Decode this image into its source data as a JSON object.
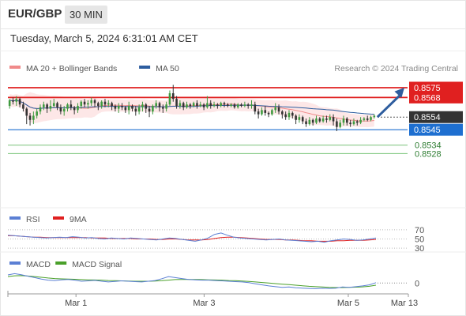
{
  "header": {
    "pair": "EUR/GBP",
    "timeframe": "30 MIN",
    "timestamp": "Tuesday, March 5, 2024 6:31:01 AM CET"
  },
  "colors": {
    "up": "#3f9a3f",
    "down": "#333333",
    "ma20": "#f08a8a",
    "band_fill": "#fde3e3",
    "ma50": "#2d5d9f",
    "resistance": "#e02020",
    "support": "#1e6fd0",
    "target": "#7ac47a",
    "current": "#333333",
    "rsi": "#5b7fd4",
    "rsi_ma": "#e02020",
    "macd": "#5b7fd4",
    "macd_signal": "#4aa02a",
    "arrow": "#2e5d9e"
  },
  "chart_data": [
    {
      "type": "candlestick",
      "legend": [
        {
          "label": "MA 20 + Bollinger Bands",
          "color": "#f08a8a"
        },
        {
          "label": "MA 50",
          "color": "#2d5d9f"
        }
      ],
      "copyright": "Research © 2024 Trading Central",
      "ylim": [
        8522,
        8584
      ],
      "levels": [
        {
          "value": 8575,
          "label": "0.8575",
          "kind": "resistance"
        },
        {
          "value": 8568,
          "label": "0.8568",
          "kind": "resistance"
        },
        {
          "value": 8554,
          "label": "0.8554",
          "kind": "current"
        },
        {
          "value": 8545,
          "label": "0.8545",
          "kind": "support"
        },
        {
          "value": 8534,
          "label": "0.8534",
          "kind": "target"
        },
        {
          "value": 8528,
          "label": "0.8528",
          "kind": "target"
        }
      ],
      "candles": [
        [
          8562,
          8566,
          8567,
          8560
        ],
        [
          8566,
          8565,
          8568,
          8563
        ],
        [
          8565,
          8567,
          8569,
          8562
        ],
        [
          8567,
          8563,
          8568,
          8561
        ],
        [
          8563,
          8560,
          8565,
          8558
        ],
        [
          8560,
          8555,
          8561,
          8549
        ],
        [
          8555,
          8552,
          8557,
          8548
        ],
        [
          8552,
          8555,
          8558,
          8549
        ],
        [
          8555,
          8558,
          8560,
          8553
        ],
        [
          8558,
          8561,
          8563,
          8556
        ],
        [
          8561,
          8563,
          8565,
          8559
        ],
        [
          8563,
          8560,
          8564,
          8557
        ],
        [
          8560,
          8562,
          8566,
          8558
        ],
        [
          8562,
          8564,
          8567,
          8561
        ],
        [
          8564,
          8561,
          8565,
          8559
        ],
        [
          8561,
          8558,
          8563,
          8556
        ],
        [
          8558,
          8560,
          8562,
          8555
        ],
        [
          8560,
          8563,
          8564,
          8558
        ],
        [
          8563,
          8561,
          8566,
          8559
        ],
        [
          8561,
          8559,
          8562,
          8556
        ],
        [
          8559,
          8562,
          8564,
          8557
        ],
        [
          8562,
          8565,
          8566,
          8560
        ],
        [
          8565,
          8563,
          8567,
          8561
        ],
        [
          8563,
          8564,
          8566,
          8560
        ],
        [
          8564,
          8566,
          8568,
          8562
        ],
        [
          8566,
          8564,
          8567,
          8561
        ],
        [
          8564,
          8562,
          8565,
          8559
        ],
        [
          8562,
          8565,
          8566,
          8560
        ],
        [
          8565,
          8563,
          8567,
          8561
        ],
        [
          8563,
          8564,
          8566,
          8561
        ],
        [
          8564,
          8562,
          8565,
          8559
        ],
        [
          8562,
          8560,
          8563,
          8558
        ],
        [
          8560,
          8562,
          8564,
          8557
        ],
        [
          8562,
          8561,
          8564,
          8559
        ],
        [
          8561,
          8559,
          8562,
          8557
        ],
        [
          8559,
          8562,
          8565,
          8556
        ],
        [
          8562,
          8560,
          8563,
          8558
        ],
        [
          8560,
          8558,
          8562,
          8555
        ],
        [
          8558,
          8561,
          8563,
          8556
        ],
        [
          8561,
          8563,
          8565,
          8558
        ],
        [
          8563,
          8560,
          8564,
          8557
        ],
        [
          8560,
          8558,
          8562,
          8554
        ],
        [
          8558,
          8562,
          8563,
          8556
        ],
        [
          8562,
          8564,
          8566,
          8560
        ],
        [
          8564,
          8561,
          8565,
          8558
        ],
        [
          8561,
          8560,
          8563,
          8557
        ],
        [
          8560,
          8563,
          8565,
          8558
        ],
        [
          8563,
          8571,
          8573,
          8562
        ],
        [
          8571,
          8567,
          8577,
          8565
        ],
        [
          8567,
          8562,
          8569,
          8560
        ],
        [
          8562,
          8564,
          8566,
          8560
        ],
        [
          8564,
          8561,
          8565,
          8559
        ],
        [
          8561,
          8563,
          8565,
          8560
        ],
        [
          8563,
          8562,
          8564,
          8560
        ],
        [
          8562,
          8564,
          8565,
          8561
        ],
        [
          8564,
          8562,
          8566,
          8560
        ],
        [
          8562,
          8563,
          8565,
          8561
        ],
        [
          8563,
          8561,
          8564,
          8559
        ],
        [
          8561,
          8564,
          8569,
          8560
        ],
        [
          8564,
          8562,
          8566,
          8560
        ],
        [
          8562,
          8563,
          8565,
          8561
        ],
        [
          8563,
          8562,
          8564,
          8560
        ],
        [
          8562,
          8564,
          8565,
          8561
        ],
        [
          8564,
          8563,
          8565,
          8561
        ],
        [
          8563,
          8562,
          8564,
          8561
        ],
        [
          8562,
          8563,
          8564,
          8561
        ],
        [
          8563,
          8561,
          8564,
          8560
        ],
        [
          8561,
          8563,
          8564,
          8560
        ],
        [
          8563,
          8562,
          8564,
          8561
        ],
        [
          8562,
          8563,
          8565,
          8561
        ],
        [
          8563,
          8562,
          8564,
          8560
        ],
        [
          8562,
          8563,
          8566,
          8560
        ],
        [
          8563,
          8558,
          8565,
          8556
        ],
        [
          8558,
          8556,
          8560,
          8553
        ],
        [
          8556,
          8559,
          8561,
          8555
        ],
        [
          8559,
          8557,
          8562,
          8555
        ],
        [
          8557,
          8556,
          8558,
          8554
        ],
        [
          8556,
          8559,
          8560,
          8555
        ],
        [
          8559,
          8561,
          8564,
          8557
        ],
        [
          8561,
          8558,
          8563,
          8556
        ],
        [
          8558,
          8556,
          8559,
          8553
        ],
        [
          8556,
          8554,
          8558,
          8552
        ],
        [
          8554,
          8557,
          8559,
          8552
        ],
        [
          8557,
          8555,
          8558,
          8553
        ],
        [
          8555,
          8552,
          8556,
          8549
        ],
        [
          8552,
          8554,
          8556,
          8550
        ],
        [
          8554,
          8551,
          8555,
          8549
        ],
        [
          8551,
          8549,
          8553,
          8547
        ],
        [
          8549,
          8552,
          8554,
          8548
        ],
        [
          8552,
          8550,
          8553,
          8548
        ],
        [
          8550,
          8553,
          8555,
          8549
        ],
        [
          8553,
          8551,
          8554,
          8550
        ],
        [
          8551,
          8553,
          8555,
          8550
        ],
        [
          8553,
          8552,
          8555,
          8550
        ],
        [
          8552,
          8554,
          8556,
          8551
        ],
        [
          8554,
          8551,
          8556,
          8548
        ],
        [
          8551,
          8547,
          8553,
          8544
        ],
        [
          8547,
          8550,
          8552,
          8546
        ],
        [
          8550,
          8553,
          8555,
          8548
        ],
        [
          8553,
          8550,
          8554,
          8548
        ],
        [
          8550,
          8549,
          8552,
          8547
        ],
        [
          8549,
          8551,
          8553,
          8548
        ],
        [
          8551,
          8550,
          8552,
          8548
        ],
        [
          8550,
          8552,
          8554,
          8549
        ],
        [
          8552,
          8553,
          8554,
          8551
        ],
        [
          8553,
          8552,
          8555,
          8551
        ],
        [
          8552,
          8554,
          8555,
          8551
        ],
        [
          8554,
          8555,
          8556,
          8553
        ]
      ],
      "forecast": {
        "from": 8554,
        "to": 8575
      }
    },
    {
      "type": "line",
      "name": "RSI",
      "legend": [
        {
          "label": "RSI",
          "color": "#5b7fd4"
        },
        {
          "label": "9MA",
          "color": "#e02020"
        }
      ],
      "levels": [
        70,
        50,
        30
      ],
      "level_labels": [
        "70",
        "50",
        "30"
      ],
      "ylim": [
        20,
        80
      ],
      "rsi": [
        58,
        57,
        56,
        55,
        54,
        53,
        52,
        53,
        54,
        53,
        55,
        54,
        52,
        53,
        51,
        50,
        52,
        51,
        50,
        52,
        51,
        50,
        49,
        48,
        50,
        52,
        51,
        49,
        47,
        45,
        48,
        52,
        60,
        63,
        58,
        54,
        52,
        51,
        50,
        49,
        48,
        49,
        50,
        48,
        47,
        46,
        45,
        44,
        45,
        43,
        46,
        48,
        50,
        49,
        47,
        48,
        50,
        52
      ],
      "rsi_ma": [
        57,
        57,
        56,
        55,
        54,
        54,
        53,
        53,
        53,
        53,
        53,
        53,
        53,
        52,
        52,
        52,
        51,
        51,
        51,
        51,
        50,
        50,
        50,
        49,
        49,
        50,
        50,
        49,
        48,
        48,
        48,
        49,
        51,
        53,
        54,
        54,
        53,
        52,
        51,
        50,
        49,
        49,
        49,
        48,
        48,
        47,
        46,
        46,
        45,
        45,
        45,
        46,
        46,
        47,
        47,
        47,
        48,
        49
      ]
    },
    {
      "type": "line",
      "name": "MACD",
      "legend": [
        {
          "label": "MACD",
          "color": "#5b7fd4"
        },
        {
          "label": "MACD Signal",
          "color": "#4aa02a"
        }
      ],
      "zero_label": "0",
      "ylim": [
        -6,
        8
      ],
      "macd": [
        4.5,
        5.2,
        4.6,
        3.8,
        3.0,
        2.2,
        1.6,
        1.4,
        1.8,
        2.0,
        1.6,
        1.0,
        1.2,
        1.5,
        1.0,
        0.6,
        0.9,
        1.2,
        1.0,
        0.8,
        0.6,
        1.0,
        1.4,
        2.4,
        3.6,
        3.0,
        2.5,
        2.0,
        1.8,
        1.6,
        1.6,
        1.4,
        1.2,
        1.0,
        0.8,
        0.6,
        0.2,
        -0.4,
        -1.0,
        -1.6,
        -2.0,
        -2.4,
        -2.2,
        -2.6,
        -2.8,
        -3.0,
        -3.1,
        -2.9,
        -3.0,
        -2.8,
        -2.2,
        -2.4,
        -2.0,
        -1.6,
        -1.0,
        0.2
      ],
      "signal": [
        3.6,
        4.0,
        4.1,
        3.9,
        3.6,
        3.2,
        2.8,
        2.5,
        2.3,
        2.2,
        2.1,
        1.9,
        1.8,
        1.7,
        1.6,
        1.4,
        1.3,
        1.2,
        1.1,
        1.0,
        1.0,
        1.0,
        1.1,
        1.3,
        1.6,
        1.9,
        2.0,
        2.0,
        2.0,
        1.9,
        1.8,
        1.7,
        1.6,
        1.4,
        1.3,
        1.1,
        0.9,
        0.6,
        0.3,
        0.0,
        -0.3,
        -0.6,
        -0.9,
        -1.2,
        -1.5,
        -1.8,
        -2.0,
        -2.2,
        -2.4,
        -2.5,
        -2.5,
        -2.4,
        -2.3,
        -2.1,
        -1.8,
        -1.2
      ]
    }
  ],
  "x_axis": {
    "ticks": [
      {
        "label": "Mar 1",
        "pos": 0.17
      },
      {
        "label": "Mar 3",
        "pos": 0.49
      },
      {
        "label": "Mar 5",
        "pos": 0.85
      },
      {
        "label": "Mar 13",
        "pos": 1.0
      }
    ]
  }
}
